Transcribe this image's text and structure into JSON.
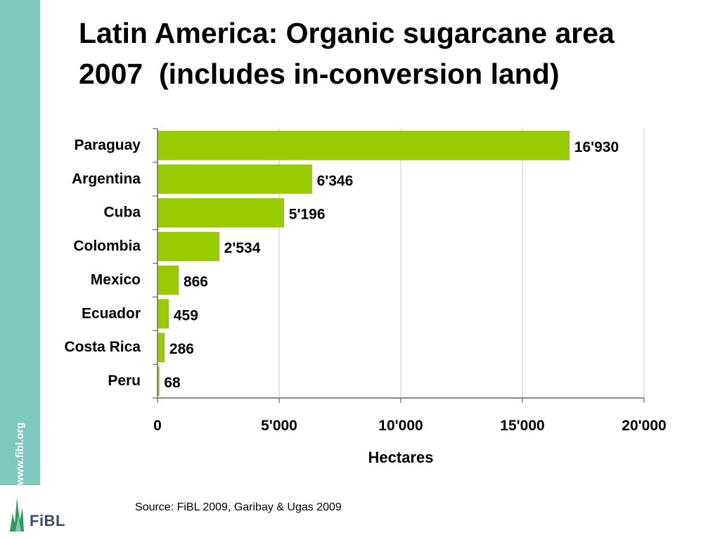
{
  "slide": {
    "title_line1": "Latin America: Organic sugarcane area",
    "title_line2": "2007  (includes in-conversion land)",
    "source": "Source: FiBL 2009, Garibay & Ugas 2009",
    "sidebar_url": "www.fibl.org",
    "logo_text": "FiBL"
  },
  "colors": {
    "sidebar": "#7fc8bd",
    "bar": "#99cc00",
    "logo_green": "#2e9e5b",
    "logo_text": "#3b4a6b"
  },
  "chart_data": {
    "type": "bar",
    "orientation": "horizontal",
    "categories": [
      "Paraguay",
      "Argentina",
      "Cuba",
      "Colombia",
      "Mexico",
      "Ecuador",
      "Costa Rica",
      "Peru"
    ],
    "values": [
      16930,
      6346,
      5196,
      2534,
      866,
      459,
      286,
      68
    ],
    "value_labels": [
      "16'930",
      "6'346",
      "5'196",
      "2'534",
      "866",
      "459",
      "286",
      "68"
    ],
    "xlabel": "Hectares",
    "xlim": [
      0,
      20000
    ],
    "xticks": [
      0,
      5000,
      10000,
      15000,
      20000
    ],
    "xtick_labels": [
      "0",
      "5'000",
      "10'000",
      "15'000",
      "20'000"
    ],
    "grid": "vertical",
    "legend": "none"
  }
}
